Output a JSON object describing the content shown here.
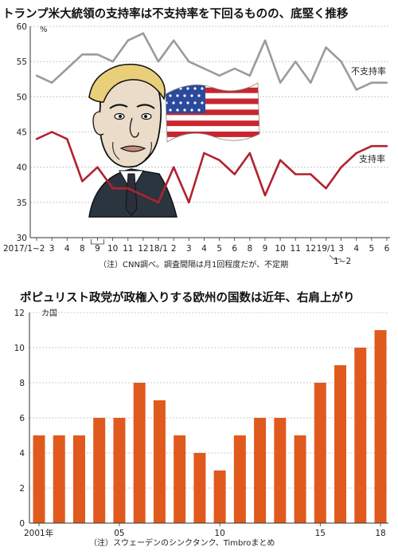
{
  "chart_data": [
    {
      "type": "line",
      "title": "トランプ米大統領の支持率は不支持率を下回るものの、底堅く推移",
      "unit": "%",
      "note": "（注）CNN調べ。調査間隔は月1回程度だが、不定期",
      "ylim": [
        30,
        60
      ],
      "yticks": [
        "30",
        "35",
        "40",
        "45",
        "50",
        "55",
        "60"
      ],
      "x_labels": [
        "2017/1~2",
        "3",
        "4",
        "8",
        "9",
        "10",
        "11",
        "12",
        "18/1",
        "2",
        "3",
        "4",
        "5",
        "6",
        "8",
        "9",
        "10",
        "11",
        "12",
        "19/1",
        "3",
        "4",
        "5",
        "6"
      ],
      "extra_label": "1~2",
      "series": [
        {
          "name": "不支持率",
          "color": "#9b9b9b",
          "values": [
            53,
            52,
            54,
            56,
            56,
            55,
            58,
            59,
            55,
            58,
            55,
            54,
            53,
            54,
            53,
            58,
            52,
            55,
            52,
            57,
            55,
            51,
            52,
            52
          ]
        },
        {
          "name": "支持率",
          "color": "#b1222f",
          "values": [
            44,
            45,
            44,
            38,
            40,
            37,
            37,
            36,
            35,
            40,
            35,
            42,
            41,
            39,
            42,
            36,
            41,
            39,
            39,
            37,
            40,
            42,
            43,
            43
          ]
        }
      ]
    },
    {
      "type": "bar",
      "title": "ポピュリスト政党が政権入りする欧州の国数は近年、右肩上がり",
      "unit": "カ国",
      "note": "（注）スウェーデンのシンクタンク、Timbroまとめ",
      "ylim": [
        0,
        12
      ],
      "yticks": [
        "0",
        "2",
        "4",
        "6",
        "8",
        "10",
        "12"
      ],
      "categories": [
        "2001",
        "2002",
        "2003",
        "2004",
        "2005",
        "2006",
        "2007",
        "2008",
        "2009",
        "2010",
        "2011",
        "2012",
        "2013",
        "2014",
        "2015",
        "2016",
        "2017",
        "2018"
      ],
      "x_labels": [
        "2001年",
        "05",
        "10",
        "15",
        "18"
      ],
      "values": [
        5,
        5,
        5,
        6,
        6,
        8,
        7,
        5,
        4,
        3,
        5,
        6,
        6,
        5,
        8,
        9,
        10,
        11
      ],
      "bar_color": "#e05a1e"
    }
  ]
}
